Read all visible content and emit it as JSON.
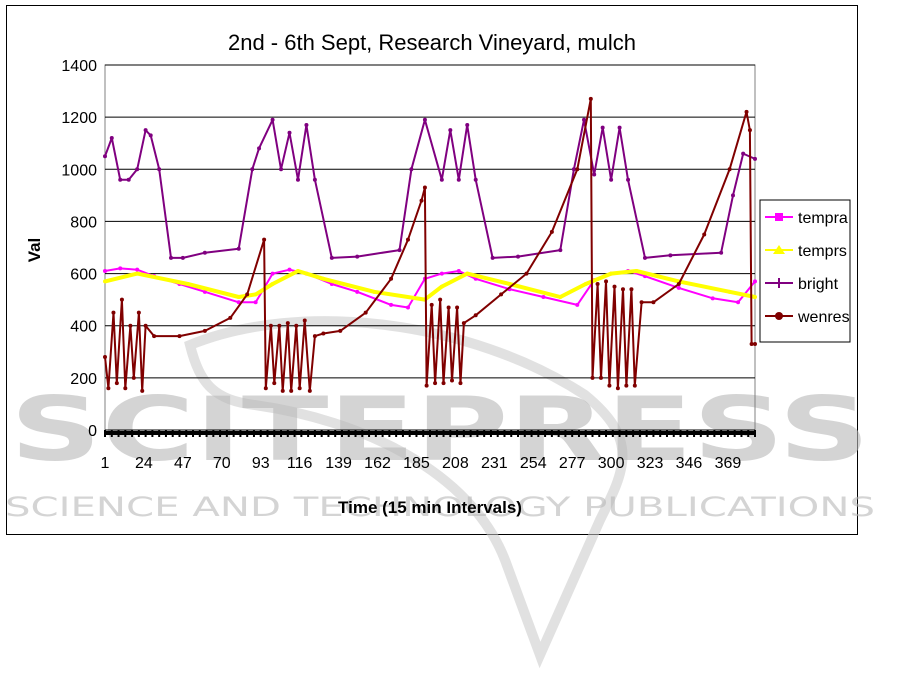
{
  "chart_data": {
    "type": "line",
    "title": "2nd - 6th Sept, Research Vineyard, mulch",
    "xlabel": "Time (15 min Intervals)",
    "ylabel": "Val",
    "ylim": [
      0,
      1400
    ],
    "yticks": [
      "0",
      "200",
      "400",
      "600",
      "800",
      "1000",
      "1200",
      "1400"
    ],
    "xlim": [
      1,
      385
    ],
    "xticks": [
      "1",
      "24",
      "47",
      "70",
      "93",
      "116",
      "139",
      "162",
      "185",
      "208",
      "231",
      "254",
      "277",
      "300",
      "323",
      "346",
      "369"
    ],
    "grid": "horizontal",
    "legend_position": "right",
    "series": [
      {
        "name": "tempra",
        "color": "#ff00ff",
        "x": [
          1,
          10,
          20,
          30,
          45,
          60,
          80,
          90,
          100,
          110,
          120,
          135,
          150,
          170,
          180,
          190,
          200,
          210,
          220,
          240,
          260,
          280,
          290,
          300,
          310,
          320,
          340,
          360,
          375,
          385
        ],
        "y": [
          610,
          620,
          615,
          590,
          560,
          530,
          490,
          490,
          600,
          615,
          600,
          560,
          530,
          480,
          470,
          580,
          600,
          610,
          580,
          540,
          510,
          480,
          575,
          600,
          610,
          590,
          545,
          505,
          490,
          570
        ]
      },
      {
        "name": "temprs",
        "color": "#ffff00",
        "x": [
          1,
          20,
          50,
          80,
          90,
          100,
          115,
          130,
          160,
          190,
          200,
          215,
          240,
          270,
          285,
          300,
          315,
          340,
          370,
          385
        ],
        "y": [
          570,
          600,
          560,
          510,
          520,
          560,
          610,
          580,
          530,
          500,
          550,
          600,
          560,
          510,
          560,
          600,
          610,
          570,
          530,
          510
        ]
      },
      {
        "name": "bright",
        "color": "#800080",
        "x": [
          1,
          5,
          10,
          15,
          20,
          25,
          28,
          33,
          40,
          47,
          60,
          80,
          88,
          92,
          100,
          105,
          110,
          115,
          120,
          125,
          135,
          150,
          175,
          182,
          190,
          200,
          205,
          210,
          215,
          220,
          230,
          245,
          270,
          278,
          284,
          290,
          295,
          300,
          305,
          310,
          320,
          335,
          365,
          372,
          378,
          385
        ],
        "y": [
          1050,
          1120,
          960,
          960,
          1000,
          1150,
          1130,
          1000,
          660,
          660,
          680,
          695,
          1000,
          1080,
          1190,
          1000,
          1140,
          960,
          1170,
          960,
          660,
          665,
          690,
          1000,
          1190,
          960,
          1150,
          960,
          1170,
          960,
          660,
          665,
          690,
          1000,
          1190,
          980,
          1160,
          960,
          1160,
          960,
          660,
          670,
          680,
          900,
          1060,
          1040
        ]
      },
      {
        "name": "wenres",
        "color": "#800000",
        "x": [
          1,
          3,
          6,
          8,
          11,
          13,
          16,
          18,
          21,
          23,
          25,
          30,
          45,
          60,
          75,
          85,
          95,
          96,
          99,
          101,
          104,
          106,
          109,
          111,
          114,
          116,
          119,
          122,
          125,
          130,
          140,
          155,
          170,
          180,
          188,
          190,
          191,
          194,
          196,
          199,
          201,
          204,
          206,
          209,
          211,
          213,
          220,
          235,
          250,
          265,
          280,
          288,
          289,
          292,
          294,
          297,
          299,
          302,
          304,
          307,
          309,
          312,
          314,
          318,
          325,
          340,
          355,
          370,
          380,
          382,
          383,
          385
        ],
        "y": [
          280,
          160,
          450,
          180,
          500,
          160,
          400,
          200,
          450,
          150,
          400,
          360,
          360,
          380,
          430,
          520,
          730,
          160,
          400,
          180,
          400,
          150,
          410,
          150,
          400,
          160,
          420,
          150,
          360,
          370,
          380,
          450,
          580,
          730,
          880,
          930,
          170,
          480,
          180,
          500,
          180,
          470,
          190,
          470,
          180,
          410,
          440,
          520,
          600,
          760,
          1000,
          1270,
          200,
          560,
          200,
          570,
          170,
          550,
          160,
          540,
          170,
          540,
          170,
          490,
          490,
          560,
          750,
          1000,
          1220,
          1150,
          330,
          330
        ]
      }
    ]
  },
  "watermark": {
    "big": "SCITEPRESS",
    "small": "SCIENCE AND TECHNOLOGY PUBLICATIONS"
  }
}
